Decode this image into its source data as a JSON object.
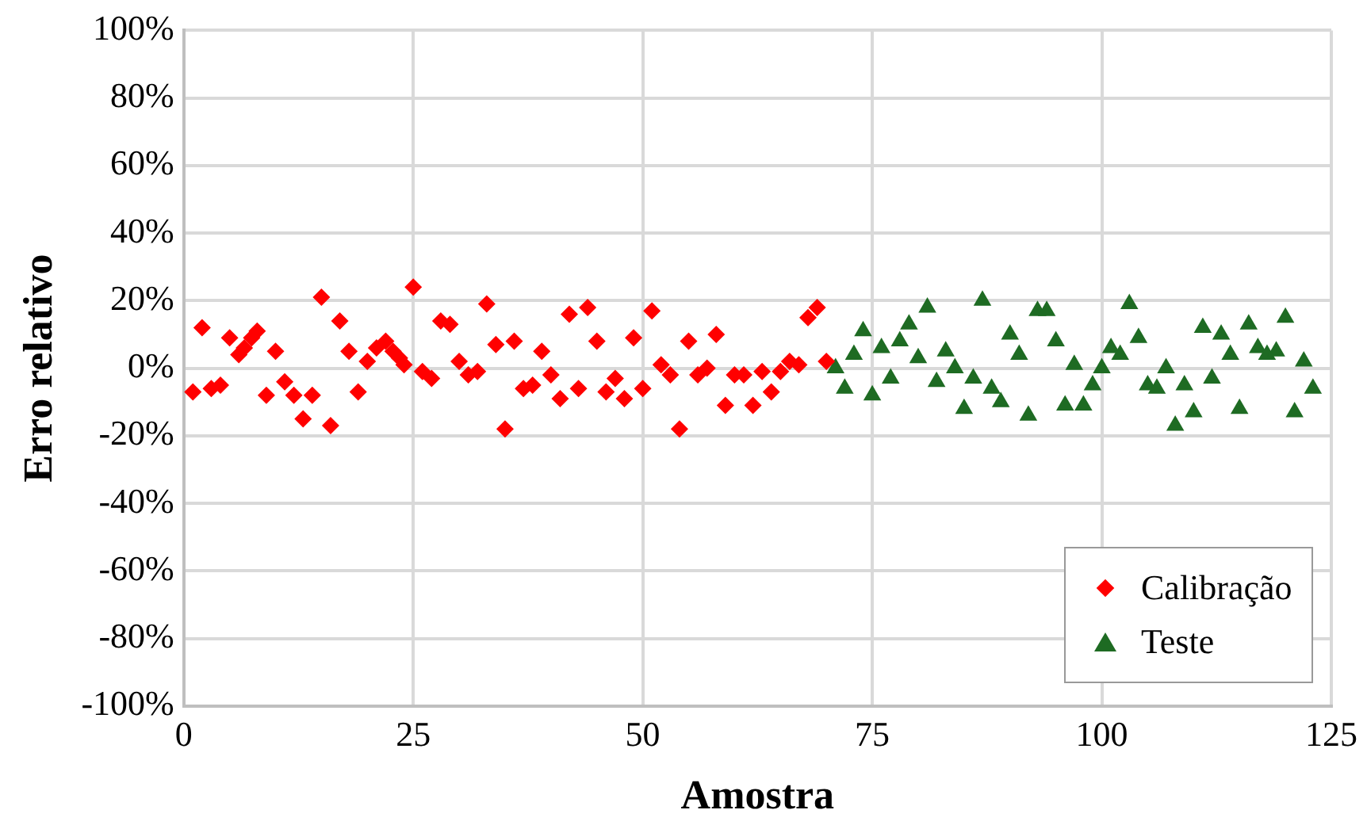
{
  "chart_data": {
    "type": "scatter",
    "xlabel": "Amostra",
    "ylabel": "Erro relativo",
    "xlim": [
      0,
      125
    ],
    "xticks": [
      0,
      25,
      50,
      75,
      100,
      125
    ],
    "ylim": [
      -100,
      100
    ],
    "yticks": [
      {
        "value": -100,
        "label": "-100%"
      },
      {
        "value": -80,
        "label": "-80%"
      },
      {
        "value": -60,
        "label": "-60%"
      },
      {
        "value": -40,
        "label": "-40%"
      },
      {
        "value": -20,
        "label": "-20%"
      },
      {
        "value": 0,
        "label": "0%"
      },
      {
        "value": 20,
        "label": "20%"
      },
      {
        "value": 40,
        "label": "40%"
      },
      {
        "value": 60,
        "label": "60%"
      },
      {
        "value": 80,
        "label": "80%"
      },
      {
        "value": 100,
        "label": "100%"
      }
    ],
    "grid": true,
    "legend": "bottom right",
    "series": [
      {
        "name": "Calibração",
        "color": "#ff0000",
        "marker": "diamond",
        "x": [
          1,
          2,
          3,
          4,
          5,
          6,
          6.6,
          7.4,
          8,
          9,
          10,
          11,
          12,
          13,
          14,
          15,
          16,
          17,
          18,
          19,
          20,
          21,
          22,
          22.8,
          23.5,
          24,
          25,
          26,
          27,
          28,
          29,
          30,
          31,
          32,
          33,
          34,
          35,
          36,
          37,
          38,
          39,
          40,
          41,
          42,
          43,
          44,
          45,
          46,
          47,
          48,
          49,
          50,
          51,
          52,
          53,
          54,
          55,
          56,
          57,
          58,
          59,
          60,
          61,
          62,
          63,
          64,
          65,
          66,
          67,
          68,
          69,
          70
        ],
        "values": [
          -7,
          12,
          -6,
          -5,
          9,
          4,
          6,
          9,
          11,
          -8,
          5,
          -4,
          -8,
          -15,
          -8,
          21,
          -17,
          14,
          5,
          -7,
          2,
          6,
          8,
          5,
          3,
          1,
          24,
          -1,
          -3,
          14,
          13,
          2,
          -2,
          -1,
          19,
          7,
          -18,
          8,
          -6,
          -5,
          5,
          -2,
          -9,
          16,
          -6,
          18,
          8,
          -7,
          -3,
          -9,
          9,
          -6,
          17,
          1,
          -2,
          -18,
          8,
          -2,
          0,
          10,
          -11,
          -2,
          -2,
          -11,
          -1,
          -7,
          -1,
          2,
          1,
          15,
          18,
          2
        ]
      },
      {
        "name": "Teste",
        "color": "#1e6b23",
        "marker": "triangle",
        "x": [
          71,
          72,
          73,
          74,
          75,
          76,
          77,
          78,
          79,
          80,
          81,
          82,
          83,
          84,
          85,
          86,
          87,
          88,
          89,
          90,
          91,
          92,
          93,
          94,
          95,
          96,
          97,
          98,
          99,
          100,
          101,
          102,
          103,
          104,
          105,
          106,
          107,
          108,
          109,
          110,
          111,
          112,
          113,
          114,
          115,
          116,
          117,
          118,
          119,
          120,
          121,
          122,
          123
        ],
        "values": [
          0,
          -6,
          4,
          11,
          -8,
          6,
          -3,
          8,
          13,
          3,
          18,
          -4,
          5,
          0,
          -12,
          -3,
          20,
          -6,
          -10,
          10,
          4,
          -14,
          17,
          17,
          8,
          -11,
          1,
          -11,
          -5,
          0,
          6,
          4,
          19,
          9,
          -5,
          -6,
          0,
          -17,
          -5,
          -13,
          12,
          -3,
          10,
          4,
          -12,
          13,
          6,
          4,
          5,
          15,
          -13,
          2,
          -6
        ]
      }
    ]
  }
}
